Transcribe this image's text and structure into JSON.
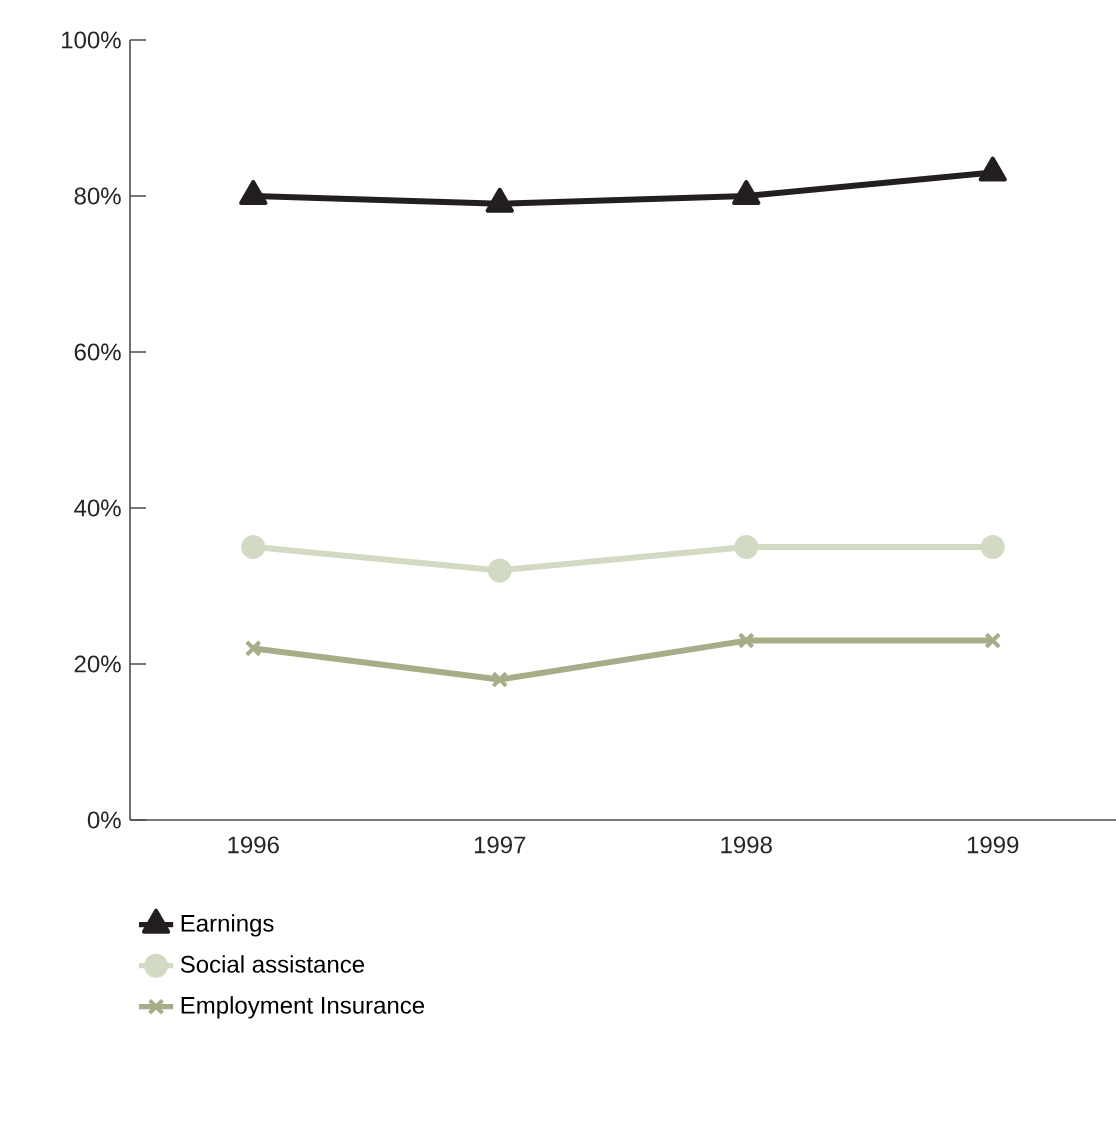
{
  "chart_data": {
    "type": "line",
    "categories": [
      "1996",
      "1997",
      "1998",
      "1999"
    ],
    "series": [
      {
        "name": "Earnings",
        "color": "#231f20",
        "marker": "triangle",
        "values": [
          80,
          79,
          80,
          83
        ]
      },
      {
        "name": "Social assistance",
        "color": "#d3dac4",
        "marker": "circle",
        "values": [
          35,
          32,
          35,
          35
        ]
      },
      {
        "name": "Employment Insurance",
        "color": "#a5ae88",
        "marker": "cross",
        "values": [
          22,
          18,
          23,
          23
        ]
      }
    ],
    "ylim": [
      0,
      100
    ],
    "yticks": [
      {
        "value": 0,
        "label": "0%"
      },
      {
        "value": 20,
        "label": "20%"
      },
      {
        "value": 40,
        "label": "40%"
      },
      {
        "value": 60,
        "label": "60%"
      },
      {
        "value": 80,
        "label": "80%"
      },
      {
        "value": 100,
        "label": "100%"
      }
    ],
    "grid": false,
    "legend": "bottom left",
    "line_style": "solid"
  }
}
